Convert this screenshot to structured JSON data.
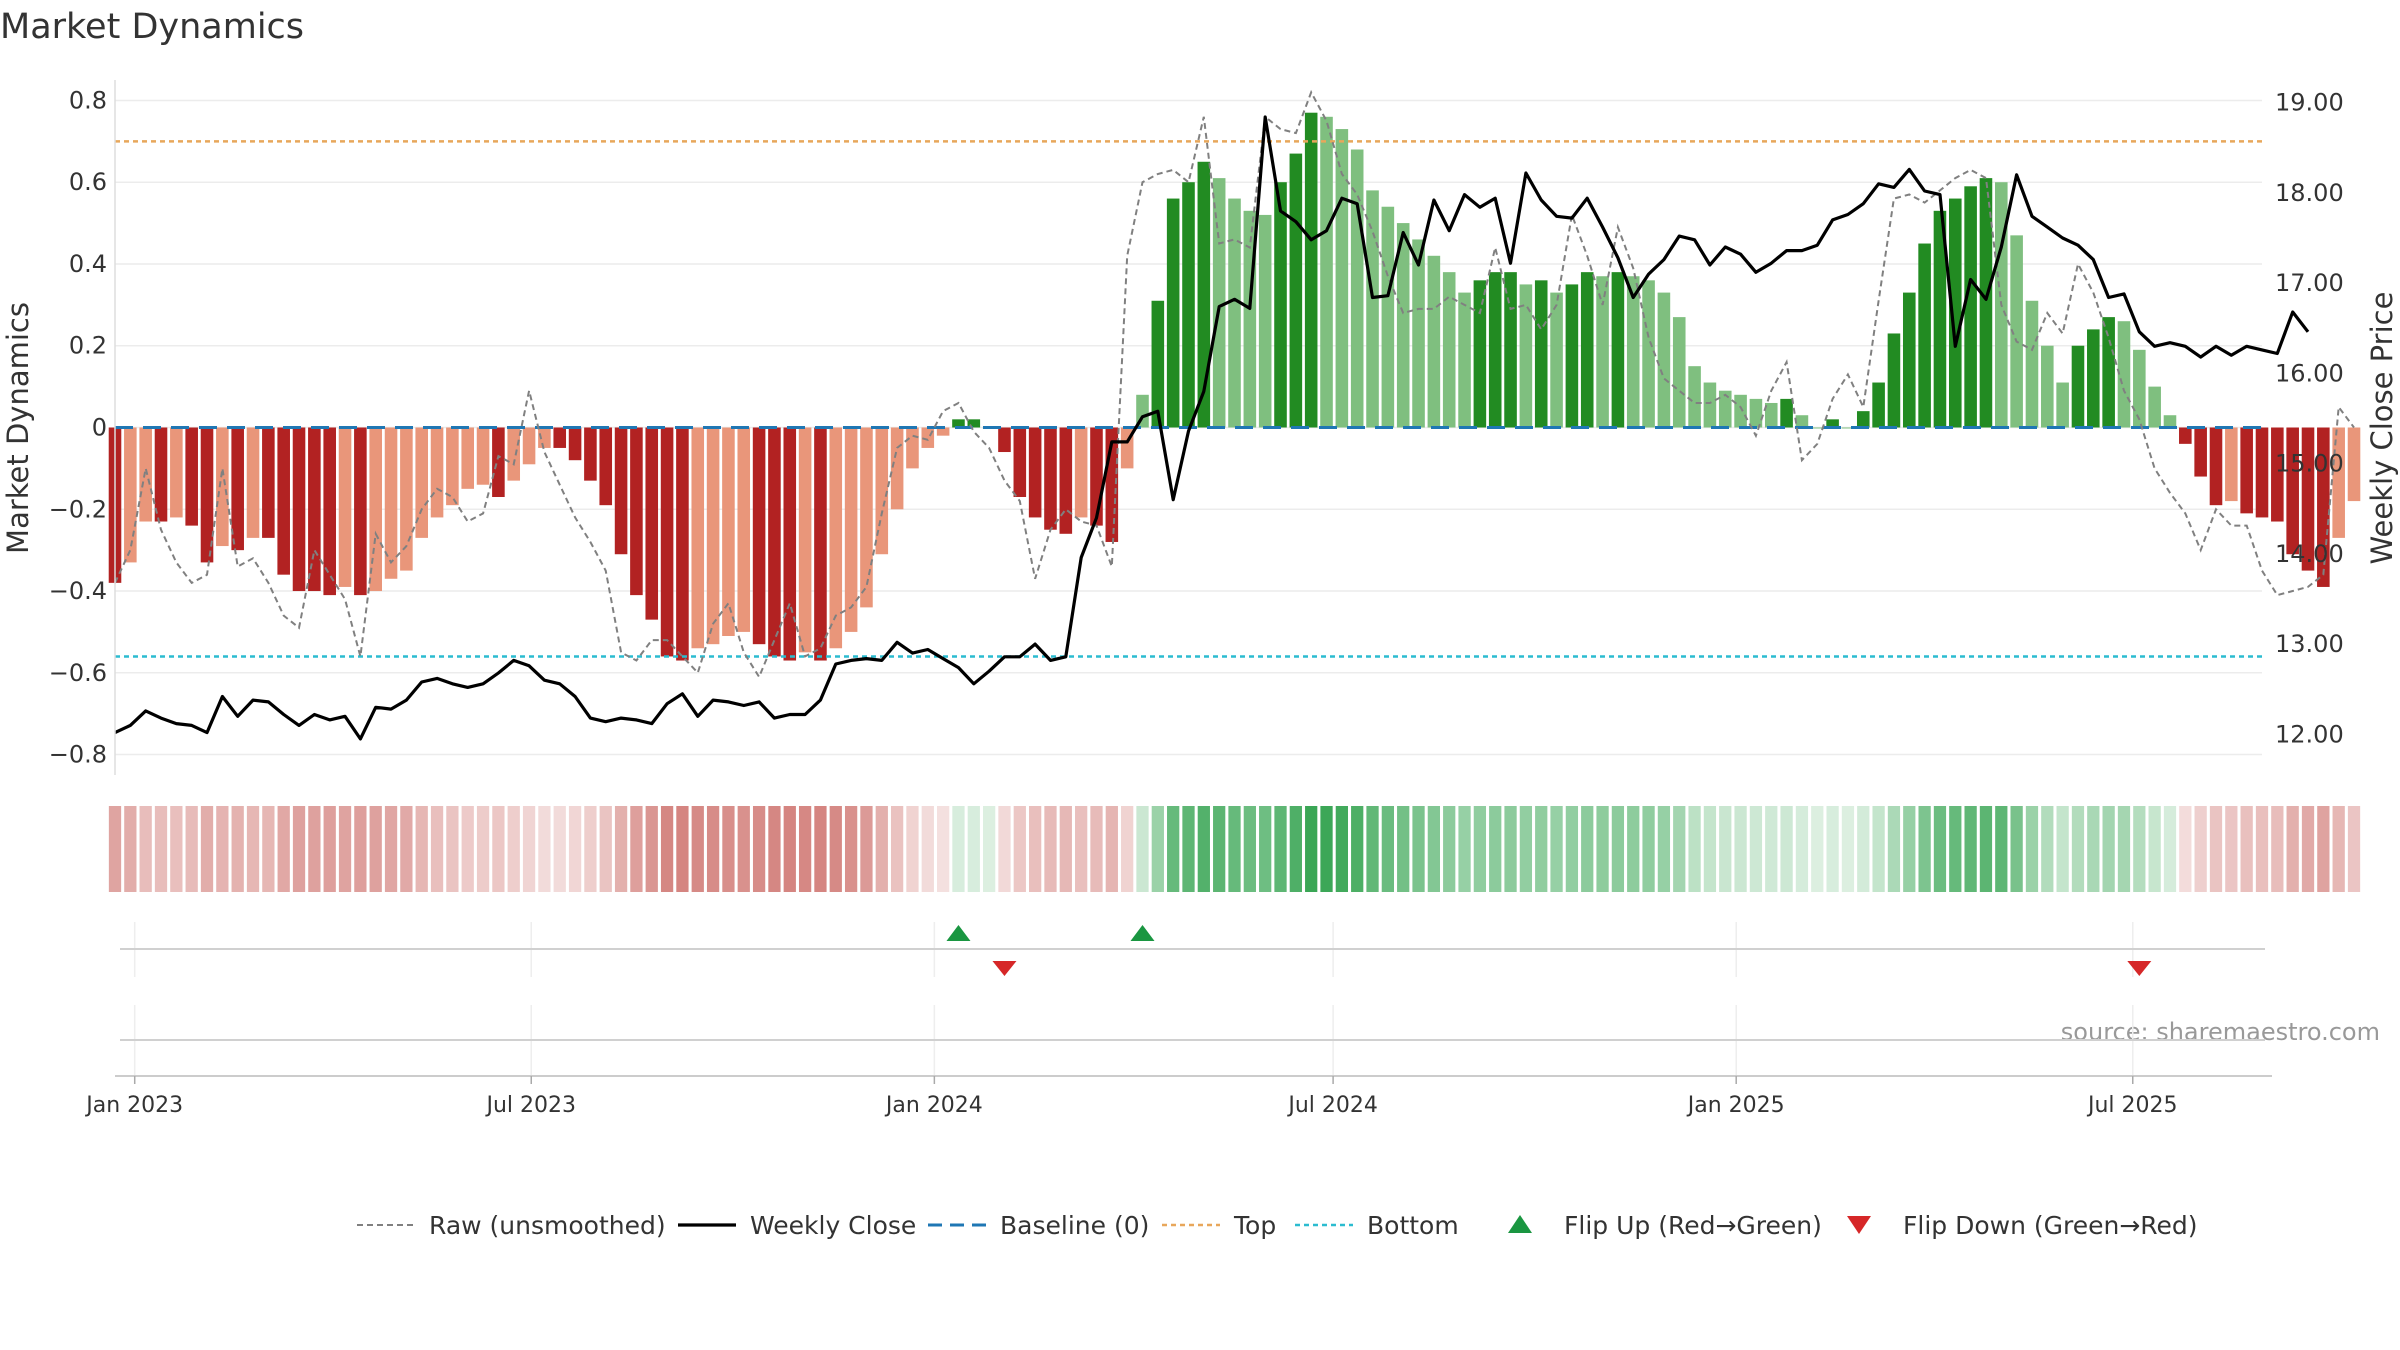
{
  "title": "Market Dynamics",
  "source": "source: sharemaestro.com",
  "colors": {
    "strong_green": "#228b22",
    "light_green": "#7fbf7f",
    "strong_red": "#b22222",
    "light_red": "#e9967a",
    "price_line": "#000000",
    "raw_line": "#808080",
    "baseline": "#1f77b4",
    "top_line": "#e8a75b",
    "bottom_line": "#2bbcd0",
    "flip_up": "#1a9641",
    "flip_down": "#d62728"
  },
  "chart_data": {
    "type": "bar",
    "title": "Market Dynamics",
    "x_start": "2022-12-23",
    "x_step_days": 7,
    "xlim": [
      "2022-12-23",
      "2025-08-29"
    ],
    "xticks": [
      {
        "date": "2023-01-01",
        "label": "Jan 2023"
      },
      {
        "date": "2023-07-01",
        "label": "Jul 2023"
      },
      {
        "date": "2024-01-01",
        "label": "Jan 2024"
      },
      {
        "date": "2024-07-01",
        "label": "Jul 2024"
      },
      {
        "date": "2025-01-01",
        "label": "Jan 2025"
      },
      {
        "date": "2025-07-01",
        "label": "Jul 2025"
      }
    ],
    "left_axis": {
      "label": "Market Dynamics",
      "ylim": [
        -0.85,
        0.85
      ],
      "ticks": [
        "-0.8",
        "-0.6",
        "-0.4",
        "-0.2",
        "0",
        "0.2",
        "0.4",
        "0.6",
        "0.8"
      ]
    },
    "right_axis": {
      "label": "Weekly Close Price",
      "ylim": [
        11.55,
        19.25
      ],
      "ticks": [
        "12.00",
        "13.00",
        "14.00",
        "15.00",
        "16.00",
        "17.00",
        "18.00",
        "19.00"
      ]
    },
    "reference_lines": {
      "baseline": 0,
      "top": 0.7,
      "bottom": -0.56
    },
    "series": [
      {
        "name": "Market Dynamics",
        "kind": "bar",
        "values": [
          -0.38,
          -0.33,
          -0.23,
          -0.23,
          -0.22,
          -0.24,
          -0.33,
          -0.29,
          -0.3,
          -0.27,
          -0.27,
          -0.36,
          -0.4,
          -0.4,
          -0.41,
          -0.39,
          -0.41,
          -0.4,
          -0.37,
          -0.35,
          -0.27,
          -0.22,
          -0.19,
          -0.15,
          -0.14,
          -0.17,
          -0.13,
          -0.09,
          -0.05,
          -0.05,
          -0.08,
          -0.13,
          -0.19,
          -0.31,
          -0.41,
          -0.47,
          -0.56,
          -0.57,
          -0.54,
          -0.53,
          -0.51,
          -0.5,
          -0.53,
          -0.56,
          -0.57,
          -0.55,
          -0.57,
          -0.54,
          -0.5,
          -0.44,
          -0.31,
          -0.2,
          -0.1,
          -0.05,
          -0.02,
          0.02,
          0.02,
          0.0,
          -0.06,
          -0.17,
          -0.22,
          -0.25,
          -0.26,
          -0.22,
          -0.24,
          -0.28,
          -0.1,
          0.08,
          0.31,
          0.56,
          0.6,
          0.65,
          0.61,
          0.56,
          0.53,
          0.52,
          0.6,
          0.67,
          0.77,
          0.76,
          0.73,
          0.68,
          0.58,
          0.54,
          0.5,
          0.46,
          0.42,
          0.38,
          0.33,
          0.36,
          0.38,
          0.38,
          0.35,
          0.36,
          0.33,
          0.35,
          0.38,
          0.37,
          0.38,
          0.37,
          0.36,
          0.33,
          0.27,
          0.15,
          0.11,
          0.09,
          0.08,
          0.07,
          0.06,
          0.07,
          0.03,
          0.0,
          0.02,
          0.0,
          0.04,
          0.11,
          0.23,
          0.33,
          0.45,
          0.53,
          0.56,
          0.59,
          0.61,
          0.6,
          0.47,
          0.31,
          0.2,
          0.11,
          0.2,
          0.24,
          0.27,
          0.26,
          0.19,
          0.1,
          0.03,
          -0.04,
          -0.12,
          -0.19,
          -0.18,
          -0.21,
          -0.22,
          -0.23,
          -0.31,
          -0.35,
          -0.39,
          -0.27,
          -0.18
        ]
      },
      {
        "name": "Raw (unsmoothed)",
        "kind": "line",
        "values": [
          -0.38,
          -0.3,
          -0.1,
          -0.25,
          -0.33,
          -0.38,
          -0.36,
          -0.1,
          -0.34,
          -0.32,
          -0.38,
          -0.46,
          -0.49,
          -0.3,
          -0.36,
          -0.42,
          -0.56,
          -0.26,
          -0.33,
          -0.29,
          -0.2,
          -0.15,
          -0.17,
          -0.23,
          -0.21,
          -0.07,
          -0.09,
          0.09,
          -0.06,
          -0.14,
          -0.22,
          -0.28,
          -0.35,
          -0.55,
          -0.57,
          -0.52,
          -0.52,
          -0.56,
          -0.6,
          -0.48,
          -0.43,
          -0.55,
          -0.61,
          -0.52,
          -0.43,
          -0.56,
          -0.54,
          -0.46,
          -0.44,
          -0.39,
          -0.21,
          -0.05,
          -0.02,
          -0.03,
          0.04,
          0.06,
          -0.01,
          -0.05,
          -0.13,
          -0.18,
          -0.37,
          -0.25,
          -0.2,
          -0.23,
          -0.24,
          -0.34,
          0.42,
          0.6,
          0.62,
          0.63,
          0.6,
          0.76,
          0.45,
          0.46,
          0.44,
          0.76,
          0.73,
          0.72,
          0.82,
          0.75,
          0.62,
          0.57,
          0.48,
          0.37,
          0.28,
          0.29,
          0.29,
          0.32,
          0.3,
          0.28,
          0.44,
          0.29,
          0.3,
          0.24,
          0.3,
          0.52,
          0.42,
          0.3,
          0.49,
          0.39,
          0.22,
          0.12,
          0.09,
          0.06,
          0.06,
          0.08,
          0.05,
          -0.02,
          0.09,
          0.16,
          -0.08,
          -0.04,
          0.07,
          0.13,
          0.05,
          0.31,
          0.56,
          0.57,
          0.55,
          0.58,
          0.61,
          0.63,
          0.61,
          0.3,
          0.21,
          0.19,
          0.28,
          0.23,
          0.4,
          0.33,
          0.22,
          0.09,
          0.02,
          -0.1,
          -0.16,
          -0.21,
          -0.3,
          -0.2,
          -0.24,
          -0.24,
          -0.35,
          -0.41,
          -0.4,
          -0.39,
          -0.36,
          0.05,
          0.0
        ]
      },
      {
        "name": "Weekly Close",
        "kind": "line",
        "axis": "right",
        "values": [
          12.02,
          12.1,
          12.26,
          12.18,
          12.12,
          12.1,
          12.02,
          12.42,
          12.2,
          12.38,
          12.36,
          12.22,
          12.1,
          12.22,
          12.16,
          12.2,
          11.95,
          12.3,
          12.28,
          12.38,
          12.58,
          12.62,
          12.56,
          12.52,
          12.56,
          12.68,
          12.82,
          12.76,
          12.6,
          12.56,
          12.42,
          12.18,
          12.14,
          12.18,
          12.16,
          12.12,
          12.34,
          12.45,
          12.2,
          12.38,
          12.36,
          12.32,
          12.36,
          12.18,
          12.22,
          12.22,
          12.38,
          12.78,
          12.82,
          12.84,
          12.82,
          13.02,
          12.9,
          12.94,
          12.84,
          12.74,
          12.56,
          12.7,
          12.86,
          12.86,
          13.0,
          12.82,
          12.86,
          13.96,
          14.4,
          15.24,
          15.24,
          15.52,
          15.58,
          14.6,
          15.36,
          15.8,
          16.74,
          16.82,
          16.72,
          18.84,
          17.8,
          17.68,
          17.48,
          17.58,
          17.94,
          17.88,
          16.84,
          16.86,
          17.56,
          17.2,
          17.92,
          17.58,
          17.98,
          17.84,
          17.94,
          17.22,
          18.22,
          17.92,
          17.74,
          17.72,
          17.94,
          17.62,
          17.28,
          16.84,
          17.1,
          17.26,
          17.52,
          17.48,
          17.2,
          17.4,
          17.32,
          17.12,
          17.22,
          17.36,
          17.36,
          17.42,
          17.7,
          17.76,
          17.88,
          18.1,
          18.06,
          18.26,
          18.02,
          17.98,
          16.3,
          17.04,
          16.82,
          17.4,
          18.2,
          17.74,
          17.62,
          17.5,
          17.42,
          17.26,
          16.84,
          16.88,
          16.46,
          16.3,
          16.34,
          16.3,
          16.18,
          16.3,
          16.2,
          16.3,
          16.26,
          16.22,
          16.68,
          16.46
        ]
      }
    ],
    "flip_up_weeks": [
      55,
      67
    ],
    "flip_down_weeks": [
      58,
      132
    ],
    "regime_strip": "one colour block per week, colour = sign and strength of Market Dynamics",
    "legend": {
      "placement": "bottom",
      "entries": [
        {
          "label": "Raw (unsmoothed)",
          "style": "dashed-gray"
        },
        {
          "label": "Weekly Close",
          "style": "solid-black"
        },
        {
          "label": "Baseline (0)",
          "style": "dashed-blue"
        },
        {
          "label": "Top",
          "style": "dotted-orange"
        },
        {
          "label": "Bottom",
          "style": "dotted-cyan"
        },
        {
          "label": "Flip Up (Red→Green)",
          "style": "triangle-up-green"
        },
        {
          "label": "Flip Down (Green→Red)",
          "style": "triangle-down-red"
        }
      ]
    }
  }
}
